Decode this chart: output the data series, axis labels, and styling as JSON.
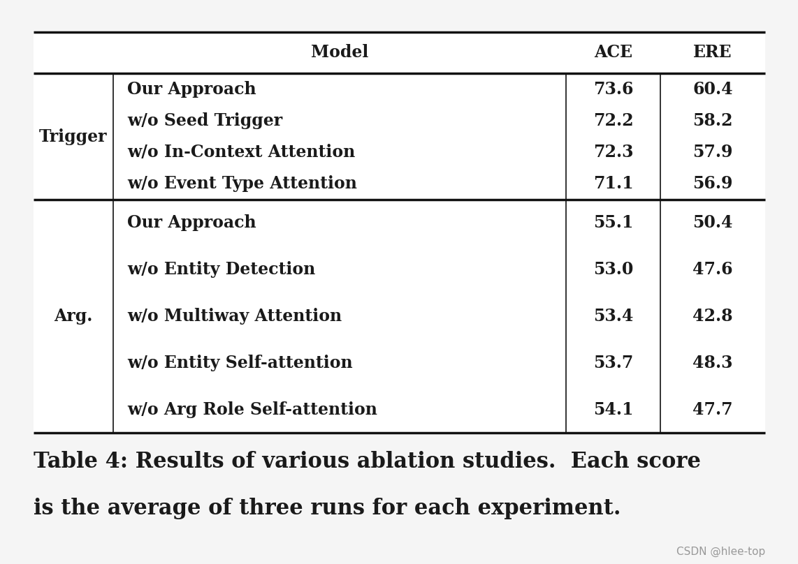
{
  "bg_color": "#f5f5f5",
  "table_bg": "#ffffff",
  "header": [
    "Model",
    "ACE",
    "ERE"
  ],
  "trigger_rows": [
    [
      "Our Approach",
      "73.6",
      "60.4"
    ],
    [
      "w/o Seed Trigger",
      "72.2",
      "58.2"
    ],
    [
      "w/o In-Context Attention",
      "72.3",
      "57.9"
    ],
    [
      "w/o Event Type Attention",
      "71.1",
      "56.9"
    ]
  ],
  "arg_rows": [
    [
      "Our Approach",
      "55.1",
      "50.4"
    ],
    [
      "w/o Entity Detection",
      "53.0",
      "47.6"
    ],
    [
      "w/o Multiway Attention",
      "53.4",
      "42.8"
    ],
    [
      "w/o Entity Self-attention",
      "53.7",
      "48.3"
    ],
    [
      "w/o Arg Role Self-attention",
      "54.1",
      "47.7"
    ]
  ],
  "trigger_label": "Trigger",
  "arg_label": "Arg.",
  "caption_line1": "Table 4: Results of various ablation studies.  Each score",
  "caption_line2": "is the average of three runs for each experiment.",
  "watermark": "CSDN @hlee-top",
  "text_color": "#1a1a1a",
  "font_size": 17,
  "caption_font_size": 22,
  "watermark_font_size": 11,
  "lw_thick": 2.5,
  "lw_thin": 1.2
}
